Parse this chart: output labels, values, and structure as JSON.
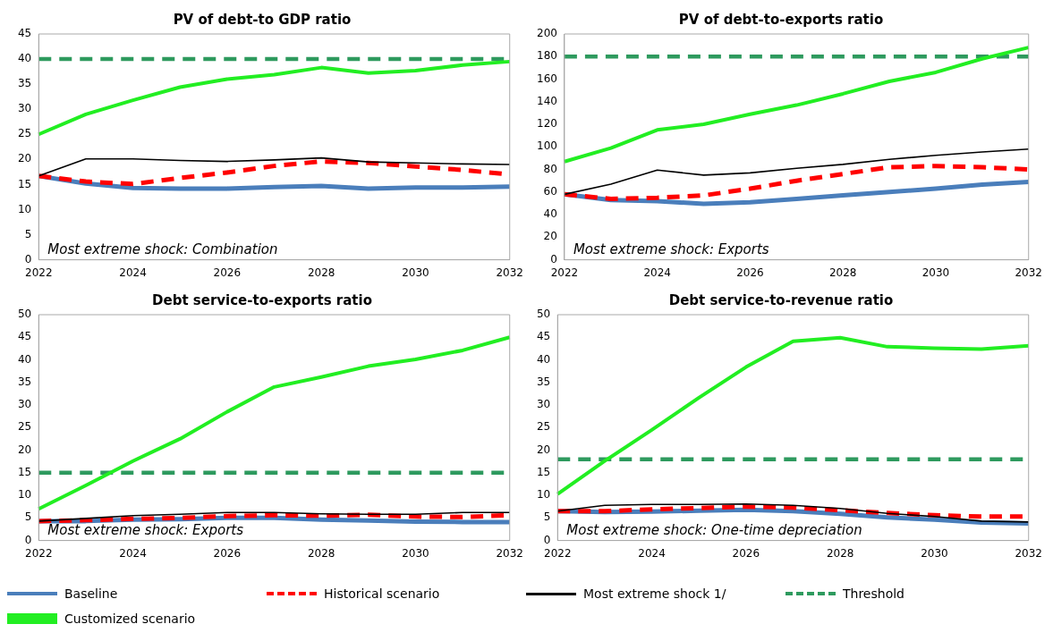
{
  "chart_data": [
    {
      "type": "line",
      "title": "PV of debt-to GDP ratio",
      "categories": [
        "2022",
        null,
        "2024",
        null,
        "2026",
        null,
        "2028",
        null,
        "2030",
        null,
        "2032"
      ],
      "ylim": [
        0,
        45
      ],
      "yticks": [
        0,
        5,
        10,
        15,
        20,
        25,
        30,
        35,
        40,
        45
      ],
      "grid": false,
      "legend": "bottom",
      "annotations": [
        "Most extreme shock: Combination"
      ],
      "series": [
        {
          "name": "Baseline",
          "color": "#4a7ebb",
          "values": [
            16.7,
            15.2,
            14.3,
            14.2,
            14.2,
            14.5,
            14.7,
            14.2,
            14.4,
            14.4,
            14.6
          ]
        },
        {
          "name": "Historical scenario",
          "color": "#ff0000",
          "line_style": "dashed",
          "values": [
            16.7,
            15.6,
            15.1,
            16.3,
            17.4,
            18.7,
            19.6,
            19.3,
            18.6,
            17.9,
            17
          ]
        },
        {
          "name": "Most extreme shock 1/",
          "color": "#000000",
          "values": [
            16.7,
            20.1,
            20.1,
            19.8,
            19.6,
            19.9,
            20.3,
            19.5,
            19.3,
            19.1,
            19
          ]
        },
        {
          "name": "Threshold",
          "color": "#2e9a5e",
          "line_style": "dashed",
          "values": [
            40,
            40,
            40,
            40,
            40,
            40,
            40,
            40,
            40,
            40,
            40
          ]
        },
        {
          "name": "Customized scenario",
          "color": "#22ee22",
          "values": [
            25,
            29,
            31.8,
            34.4,
            36,
            36.9,
            38.3,
            37.2,
            37.7,
            38.8,
            39.5
          ]
        }
      ]
    },
    {
      "type": "line",
      "title": "PV of debt-to-exports ratio",
      "categories": [
        "2022",
        null,
        "2024",
        null,
        "2026",
        null,
        "2028",
        null,
        "2030",
        null,
        "2032"
      ],
      "ylim": [
        0,
        200
      ],
      "yticks": [
        0,
        20,
        40,
        60,
        80,
        100,
        120,
        140,
        160,
        180,
        200
      ],
      "grid": false,
      "annotations": [
        "Most extreme shock: Exports"
      ],
      "series": [
        {
          "color": "#4a7ebb",
          "values": [
            58,
            53,
            52,
            49.5,
            51,
            54,
            57,
            60,
            63,
            66.5,
            69
          ]
        },
        {
          "color": "#ff0000",
          "line_style": "dashed",
          "values": [
            58,
            54,
            55,
            57,
            63,
            70,
            76,
            82,
            83,
            82,
            80
          ]
        },
        {
          "color": "#000000",
          "values": [
            58,
            67,
            79.5,
            75,
            77,
            81,
            84.5,
            89,
            92.5,
            95.5,
            98
          ]
        },
        {
          "color": "#2e9a5e",
          "line_style": "dashed",
          "values": [
            180,
            180,
            180,
            180,
            180,
            180,
            180,
            180,
            180,
            180,
            180
          ]
        },
        {
          "color": "#22ee22",
          "values": [
            87,
            99,
            115,
            120,
            129,
            137,
            147,
            158,
            166,
            178,
            188
          ]
        }
      ]
    },
    {
      "type": "line",
      "title": "Debt service-to-exports ratio",
      "categories": [
        "2022",
        null,
        "2024",
        null,
        "2026",
        null,
        "2028",
        null,
        "2030",
        null,
        "2032"
      ],
      "ylim": [
        0,
        50
      ],
      "yticks": [
        0,
        5,
        10,
        15,
        20,
        25,
        30,
        35,
        40,
        45,
        50
      ],
      "grid": false,
      "annotations": [
        "Most extreme shock: Exports"
      ],
      "series": [
        {
          "color": "#4a7ebb",
          "values": [
            4.3,
            4.3,
            4.6,
            4.7,
            5,
            5,
            4.6,
            4.4,
            4.2,
            4.1,
            4.1
          ]
        },
        {
          "color": "#ff0000",
          "line_style": "dashed",
          "values": [
            4.3,
            4.5,
            4.8,
            5,
            5.4,
            5.6,
            5.5,
            5.7,
            5.3,
            5.2,
            5.6
          ]
        },
        {
          "color": "#000000",
          "values": [
            4.3,
            4.9,
            5.5,
            5.8,
            6.2,
            6.2,
            5.9,
            5.8,
            5.8,
            6.2,
            6.2
          ]
        },
        {
          "color": "#2e9a5e",
          "line_style": "dashed",
          "values": [
            15,
            15,
            15,
            15,
            15,
            15,
            15,
            15,
            15,
            15,
            15
          ]
        },
        {
          "color": "#22ee22",
          "values": [
            7,
            12.2,
            17.6,
            22.5,
            28.5,
            34,
            36.2,
            38.6,
            40.1,
            42.1,
            45
          ]
        }
      ]
    },
    {
      "type": "line",
      "title": "Debt service-to-revenue ratio",
      "categories": [
        "2022",
        null,
        "2024",
        null,
        "2026",
        null,
        "2028",
        null,
        "2030",
        null,
        "2032"
      ],
      "ylim": [
        0,
        50
      ],
      "yticks": [
        0,
        5,
        10,
        15,
        20,
        25,
        30,
        35,
        40,
        45,
        50
      ],
      "grid": false,
      "annotations": [
        "Most extreme shock: One-time depreciation"
      ],
      "series": [
        {
          "color": "#4a7ebb",
          "values": [
            6.5,
            6.3,
            6.4,
            6.6,
            6.8,
            6.5,
            5.9,
            5.1,
            4.6,
            4,
            3.8
          ]
        },
        {
          "color": "#ff0000",
          "line_style": "dashed",
          "values": [
            6.5,
            6.5,
            6.9,
            7.2,
            7.5,
            7.3,
            6.7,
            6.1,
            5.6,
            5.3,
            5.3
          ]
        },
        {
          "color": "#000000",
          "values": [
            6.5,
            7.8,
            8,
            8,
            8.1,
            7.8,
            7.1,
            6,
            5.3,
            4.3,
            4.1
          ]
        },
        {
          "color": "#2e9a5e",
          "line_style": "dashed",
          "values": [
            18,
            18,
            18,
            18,
            18,
            18,
            18,
            18,
            18,
            18,
            18
          ]
        },
        {
          "color": "#22ee22",
          "values": [
            10.3,
            17.6,
            24.5,
            31.6,
            38.4,
            44.1,
            44.9,
            42.9,
            42.6,
            42.4,
            43.1
          ]
        }
      ]
    }
  ]
}
